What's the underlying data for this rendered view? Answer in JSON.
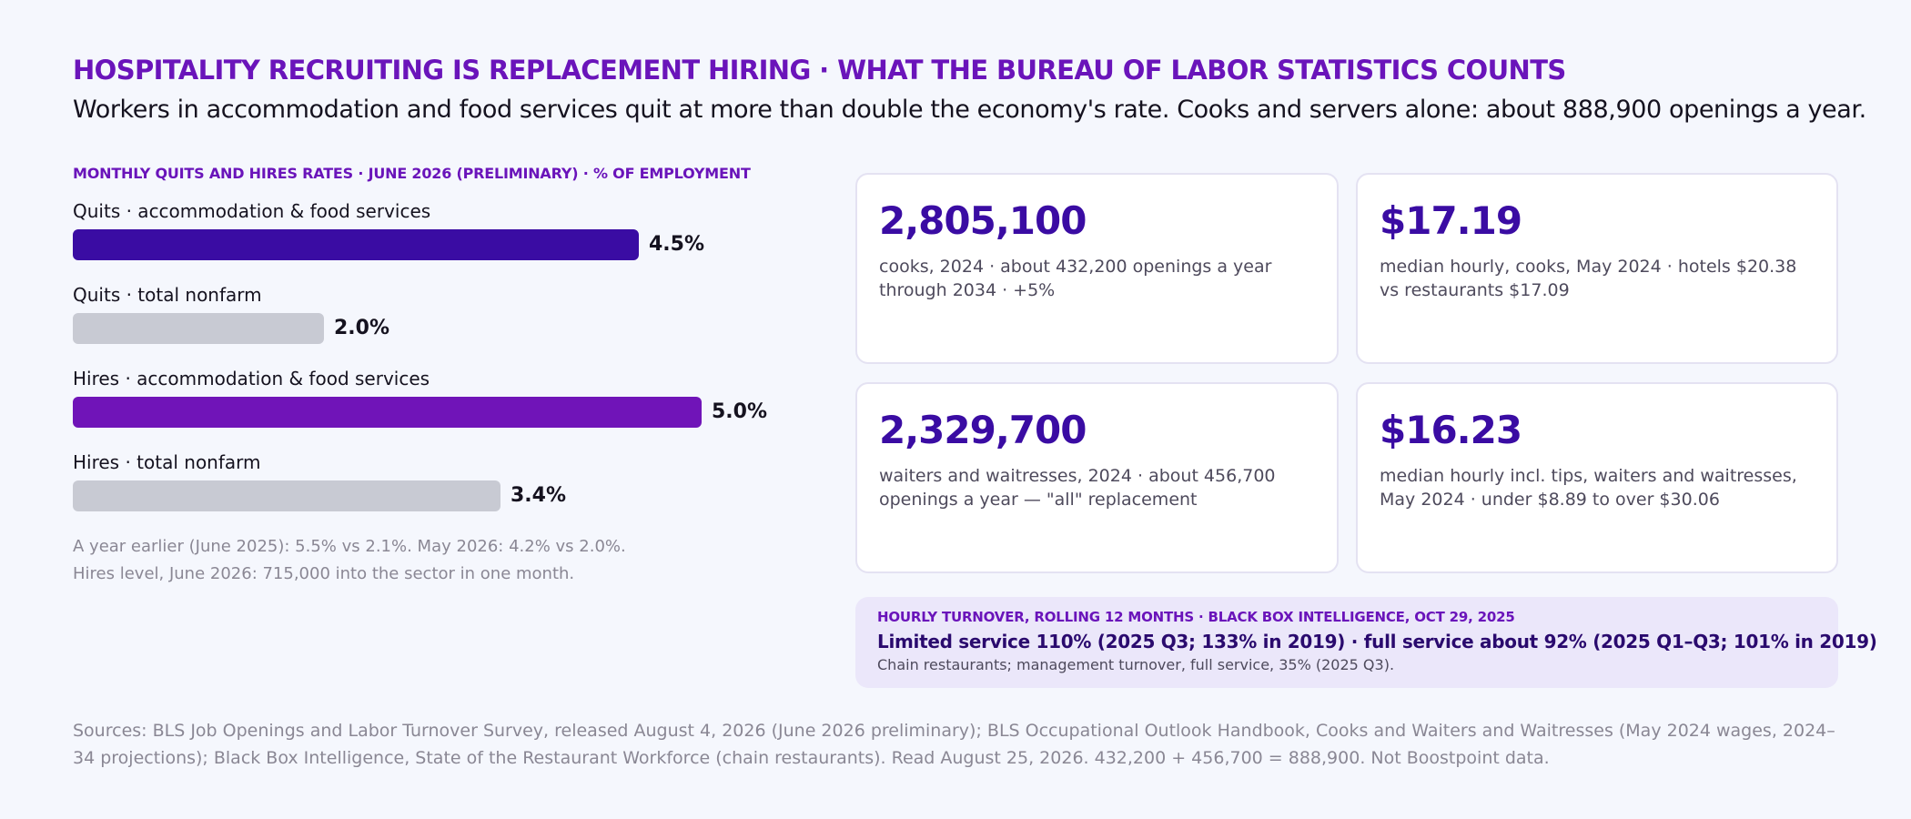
{
  "header": {
    "title": "HOSPITALITY RECRUITING IS REPLACEMENT HIRING · WHAT THE BUREAU OF LABOR STATISTICS COUNTS",
    "subtitle": "Workers in accommodation and food services quit at more than double the economy's rate. Cooks and servers alone: about 888,900 openings a year."
  },
  "chart_data": {
    "type": "bar",
    "orientation": "horizontal",
    "title": "MONTHLY QUITS AND HIRES RATES · JUNE 2026 (PRELIMINARY) · % OF EMPLOYMENT",
    "categories": [
      "Quits · accommodation & food services",
      "Quits · total nonfarm",
      "Hires · accommodation & food services",
      "Hires · total nonfarm"
    ],
    "values": [
      4.5,
      2.0,
      5.0,
      3.4
    ],
    "value_labels": [
      "4.5%",
      "2.0%",
      "5.0%",
      "3.4%"
    ],
    "colors": [
      "#3a0ca3",
      "#c8cad3",
      "#7014b8",
      "#c8cad3"
    ],
    "xlim": [
      0,
      5.0
    ],
    "grid": false,
    "legend": "none"
  },
  "chart_notes": [
    "A year earlier (June 2025): 5.5% vs 2.1%. May 2026: 4.2% vs 2.0%.",
    "Hires level, June 2026: 715,000 into the sector in one month."
  ],
  "cards": [
    {
      "big": "2,805,100",
      "desc": "cooks, 2024 · about 432,200 openings a year through 2034 · +5%"
    },
    {
      "big": "$17.19",
      "desc": "median hourly, cooks, May 2024 · hotels $20.38 vs restaurants $17.09"
    },
    {
      "big": "2,329,700",
      "desc": "waiters and waitresses, 2024 · about 456,700 openings a year — \"all\" replacement"
    },
    {
      "big": "$16.23",
      "desc": "median hourly incl. tips, waiters and waitresses, May 2024 · under $8.89 to over $30.06"
    }
  ],
  "turnover": {
    "title": "HOURLY TURNOVER, ROLLING 12 MONTHS · BLACK BOX INTELLIGENCE, OCT 29, 2025",
    "main": "Limited service 110% (2025 Q3; 133% in 2019) · full service about 92% (2025 Q1–Q3; 101% in 2019)",
    "note": "Chain restaurants; management turnover, full service, 35% (2025 Q3)."
  },
  "sources": "Sources: BLS Job Openings and Labor Turnover Survey, released August 4, 2026 (June 2026 preliminary); BLS Occupational Outlook Handbook, Cooks and Waiters and Waitresses (May 2024 wages, 2024–34 projections); Black Box Intelligence, State of the Restaurant Workforce (chain restaurants). Read August 25, 2026. 432,200 + 456,700 = 888,900. Not Boostpoint data."
}
